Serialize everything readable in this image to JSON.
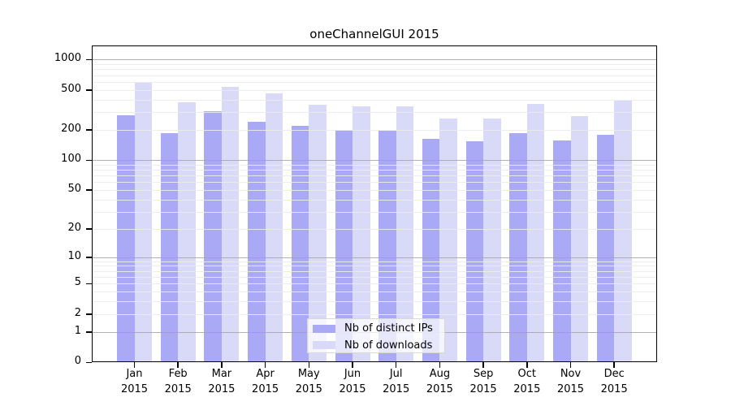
{
  "chart_data": {
    "type": "bar",
    "title": "oneChannelGUI 2015",
    "categories": [
      "Jan 2015",
      "Feb 2015",
      "Mar 2015",
      "Apr 2015",
      "May 2015",
      "Jun 2015",
      "Jul 2015",
      "Aug 2015",
      "Sep 2015",
      "Oct 2015",
      "Nov 2015",
      "Dec 2015"
    ],
    "series": [
      {
        "name": "Nb of distinct IPs",
        "color": "#a9a9f5",
        "values": [
          279,
          187,
          306,
          239,
          219,
          198,
          196,
          162,
          153,
          184,
          158,
          179
        ]
      },
      {
        "name": "Nb of downloads",
        "color": "#d9d9f8",
        "values": [
          600,
          373,
          531,
          460,
          355,
          346,
          342,
          259,
          261,
          365,
          272,
          394
        ]
      }
    ],
    "xlabel": "",
    "ylabel": "",
    "y_axis": {
      "scale": "log1p",
      "range": [
        0,
        1000
      ],
      "tick_values": [
        0,
        1,
        2,
        5,
        10,
        20,
        50,
        100,
        200,
        500,
        1000
      ],
      "major_gridlines": [
        1,
        10,
        100,
        1000
      ],
      "major_gridline_color": "#a3a3a3",
      "minor_gridline_color": "#ebebeb",
      "grid": "on"
    },
    "legend": {
      "position": "bottom-center"
    },
    "axis_color": "#000000",
    "background": "#ffffff"
  }
}
